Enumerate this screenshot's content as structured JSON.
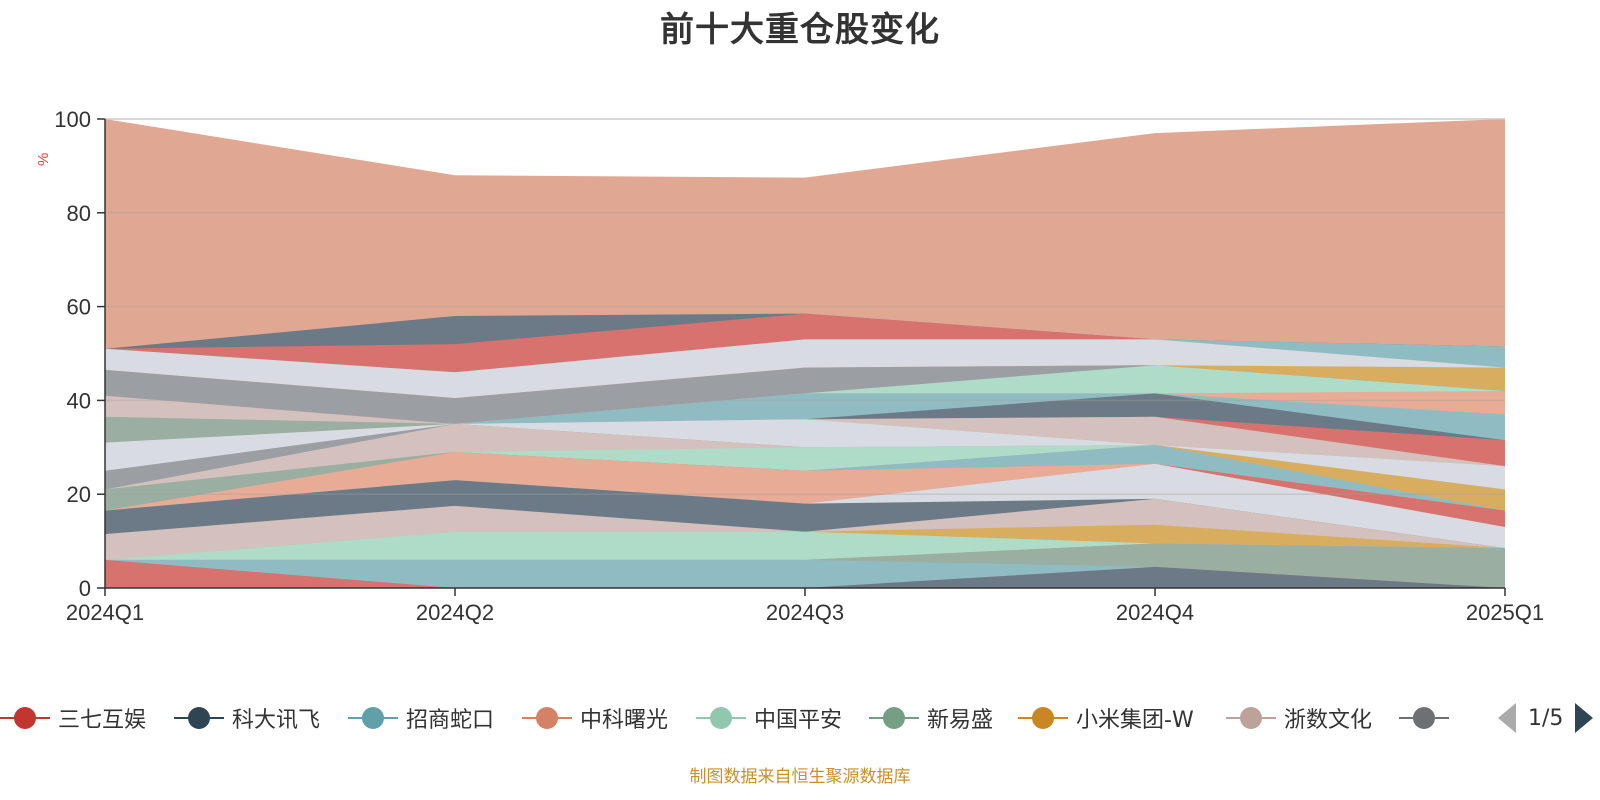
{
  "title": "前十大重仓股变化",
  "source_note": "制图数据来自恒生聚源数据库",
  "legend_pager": "1/5",
  "legend": [
    {
      "name": "三七互娱",
      "color": "#c23531"
    },
    {
      "name": "科大讯飞",
      "color": "#2f4554"
    },
    {
      "name": "招商蛇口",
      "color": "#61a0a8"
    },
    {
      "name": "中科曙光",
      "color": "#d48265"
    },
    {
      "name": "中国平安",
      "color": "#91c7ae"
    },
    {
      "name": "新易盛",
      "color": "#749f83"
    },
    {
      "name": "小米集团-W",
      "color": "#ca8622"
    },
    {
      "name": "浙数文化",
      "color": "#bda29a"
    },
    {
      "name": "",
      "color": "#6e7074"
    }
  ],
  "chart_data": {
    "type": "area",
    "title": "前十大重仓股变化",
    "ylabel": "%",
    "xlabel": "",
    "ylim": [
      0,
      100
    ],
    "yticks": [
      0,
      20,
      40,
      60,
      80,
      100
    ],
    "x": [
      "2024Q1",
      "2024Q2",
      "2024Q3",
      "2024Q4",
      "2025Q1"
    ],
    "grid": true,
    "legend_position": "bottom",
    "layers": [
      {
        "color": "#e0a793",
        "upper": [
          100,
          88,
          87.5,
          97,
          100
        ]
      },
      {
        "color": "#6b7a86",
        "upper": [
          51,
          58,
          58.5,
          53,
          51.5
        ]
      },
      {
        "color": "#d7726e",
        "upper": [
          51,
          52,
          58.5,
          53,
          51.5
        ]
      },
      {
        "color": "#8fbcc3",
        "upper": [
          51,
          46,
          53,
          53,
          51.5
        ]
      },
      {
        "color": "#d8dbe1",
        "upper": [
          51,
          46,
          53,
          53,
          47
        ]
      },
      {
        "color": "#d9ad60",
        "upper": [
          46.5,
          40.5,
          47,
          47.5,
          47
        ]
      },
      {
        "color": "#9b9ea3",
        "upper": [
          46.5,
          40.5,
          47,
          47.5,
          42
        ]
      },
      {
        "color": "#afdbc9",
        "upper": [
          41,
          35,
          41.5,
          47.5,
          42
        ]
      },
      {
        "color": "#e8ab95",
        "upper": [
          41,
          35,
          41.5,
          41.5,
          42
        ]
      },
      {
        "color": "#8fbcc3",
        "upper": [
          41,
          35,
          41.5,
          41.5,
          37
        ]
      },
      {
        "color": "#6b7a86",
        "upper": [
          41,
          35,
          36,
          41.5,
          31.5
        ]
      },
      {
        "color": "#d7726e",
        "upper": [
          41,
          35,
          36,
          36.5,
          31.5
        ]
      },
      {
        "color": "#d4c0bc",
        "upper": [
          41,
          35,
          36,
          36.5,
          26
        ]
      },
      {
        "color": "#9aaea1",
        "upper": [
          36.5,
          35,
          36,
          30.5,
          26
        ]
      },
      {
        "color": "#d8dbe1",
        "upper": [
          31,
          35,
          36,
          30.5,
          26
        ]
      },
      {
        "color": "#9b9ea3",
        "upper": [
          25,
          35,
          30,
          30.5,
          21
        ]
      },
      {
        "color": "#d4c0bc",
        "upper": [
          21,
          35,
          30,
          30.5,
          21
        ]
      },
      {
        "color": "#afdbc9",
        "upper": [
          21,
          29,
          30,
          30.5,
          21
        ]
      },
      {
        "color": "#d9ad60",
        "upper": [
          21,
          29,
          25,
          30.5,
          21
        ]
      },
      {
        "color": "#8fbcc3",
        "upper": [
          21,
          29,
          25,
          30.5,
          16.5
        ]
      },
      {
        "color": "#9aaea1",
        "upper": [
          21,
          29,
          25,
          26.5,
          16.5
        ]
      },
      {
        "color": "#e8ab95",
        "upper": [
          16.5,
          29,
          25,
          26.5,
          16.5
        ]
      },
      {
        "color": "#d7726e",
        "upper": [
          16.5,
          23,
          18,
          26.5,
          16.5
        ]
      },
      {
        "color": "#d8dbe1",
        "upper": [
          16.5,
          23,
          18,
          26.5,
          13
        ]
      },
      {
        "color": "#6b7a86",
        "upper": [
          16.5,
          23,
          18,
          19,
          8.5
        ]
      },
      {
        "color": "#9b9ea3",
        "upper": [
          11.5,
          17.5,
          12,
          19,
          8.5
        ]
      },
      {
        "color": "#d4c0bc",
        "upper": [
          11.5,
          17.5,
          12,
          19,
          8.5
        ]
      },
      {
        "color": "#d9ad60",
        "upper": [
          6,
          12,
          12,
          13.5,
          8.5
        ]
      },
      {
        "color": "#afdbc9",
        "upper": [
          6,
          12,
          12,
          9.5,
          8.5
        ]
      },
      {
        "color": "#e8ab95",
        "upper": [
          6,
          6,
          6,
          9.5,
          8.5
        ]
      },
      {
        "color": "#9aaea1",
        "upper": [
          6,
          6,
          6,
          9.5,
          8.5
        ]
      },
      {
        "color": "#8fbcc3",
        "upper": [
          6,
          6,
          6,
          4.5,
          0
        ]
      },
      {
        "color": "#d7726e",
        "upper": [
          6,
          0,
          0,
          4.5,
          0
        ]
      },
      {
        "color": "#6b7a86",
        "upper": [
          0,
          0,
          0,
          4.5,
          0
        ]
      }
    ]
  }
}
